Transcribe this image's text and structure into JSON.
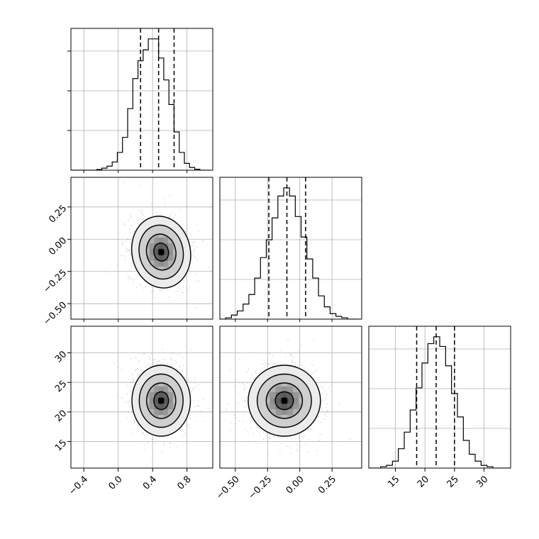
{
  "chart_data": {
    "type": "corner",
    "parameters": [
      {
        "range": [
          -0.55,
          1.1
        ],
        "ticks": [
          -0.4,
          0.0,
          0.4,
          0.8
        ],
        "tick_labels": [
          "−0.4",
          "0.0",
          "0.4",
          "0.8"
        ],
        "quantiles": [
          0.26,
          0.47,
          0.65
        ]
      },
      {
        "range": [
          -0.62,
          0.48
        ],
        "ticks": [
          -0.5,
          -0.25,
          0.0,
          0.25
        ],
        "tick_labels": [
          "−0.50",
          "−0.25",
          "0.00",
          "0.25"
        ],
        "quantiles": [
          -0.24,
          -0.1,
          0.045
        ]
      },
      {
        "range": [
          10.5,
          34.5
        ],
        "ticks": [
          15,
          20,
          25,
          30
        ],
        "tick_labels": [
          "15",
          "20",
          "25",
          "30"
        ],
        "quantiles": [
          18.6,
          21.9,
          25.0
        ]
      }
    ],
    "histograms": [
      {
        "bin_edges": [
          -0.55,
          -0.49,
          -0.43,
          -0.37,
          -0.31,
          -0.25,
          -0.19,
          -0.13,
          -0.07,
          -0.01,
          0.05,
          0.11,
          0.17,
          0.23,
          0.29,
          0.35,
          0.41,
          0.47,
          0.53,
          0.59,
          0.65,
          0.71,
          0.77,
          0.83,
          0.89,
          0.95,
          1.01,
          1.07
        ],
        "counts": [
          0,
          0,
          0,
          0,
          0,
          0.5,
          1.5,
          3,
          6,
          13,
          24,
          45,
          67,
          80,
          88,
          96,
          96,
          82,
          66,
          48,
          28,
          13,
          5,
          2,
          0.7,
          0,
          0
        ]
      },
      {
        "bin_edges": [
          -0.62,
          -0.575,
          -0.53,
          -0.485,
          -0.44,
          -0.395,
          -0.35,
          -0.305,
          -0.26,
          -0.215,
          -0.17,
          -0.125,
          -0.08,
          -0.035,
          0.01,
          0.055,
          0.1,
          0.145,
          0.19,
          0.235,
          0.28,
          0.325,
          0.37,
          0.415,
          0.46
        ],
        "counts": [
          0,
          1,
          3,
          6,
          11,
          18,
          30,
          45,
          58,
          74,
          90,
          96,
          90,
          75,
          60,
          44,
          30,
          17,
          9,
          4,
          2,
          1,
          0,
          0
        ]
      },
      {
        "bin_edges": [
          10.5,
          11.5,
          12.5,
          13.5,
          14.5,
          15.5,
          16.5,
          17.5,
          18.5,
          19.5,
          20.5,
          21.5,
          22.5,
          23.5,
          24.5,
          25.5,
          26.5,
          27.5,
          28.5,
          29.5,
          30.5,
          31.5,
          32.5,
          33.5,
          34.5
        ],
        "counts": [
          0,
          0,
          1,
          2,
          5,
          14,
          26,
          42,
          58,
          76,
          90,
          95,
          88,
          74,
          54,
          37,
          20,
          10,
          5,
          2,
          1,
          0,
          0,
          0
        ]
      }
    ],
    "joint": [
      {
        "x": 0,
        "y": 1,
        "peak": [
          0.5,
          -0.1
        ],
        "sigma": [
          0.17,
          0.14
        ],
        "rho": -0.28
      },
      {
        "x": 0,
        "y": 2,
        "peak": [
          0.5,
          21.9
        ],
        "sigma": [
          0.17,
          3.0
        ],
        "rho": 0.0
      },
      {
        "x": 1,
        "y": 2,
        "peak": [
          -0.12,
          21.9
        ],
        "sigma": [
          0.14,
          3.0
        ],
        "rho": 0.0
      }
    ],
    "contour_levels": [
      0.5,
      1.0,
      1.5,
      2.0
    ],
    "title": "",
    "grid": true,
    "legend": "none"
  }
}
